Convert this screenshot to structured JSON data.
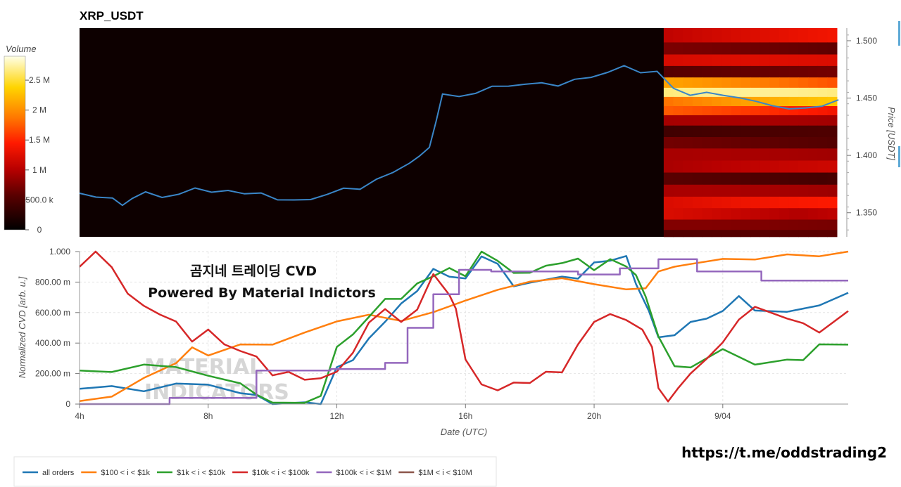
{
  "chart_data": [
    {
      "type": "heatmap",
      "title": "XRP_USDT",
      "ylabel": "Price [USDT]",
      "ylim": [
        1.329,
        1.511
      ],
      "yticks": [
        "1.500",
        "1.450",
        "1.400",
        "1.350"
      ],
      "colorbar": {
        "title": "Volume",
        "ticks": [
          "2.5 M",
          "2 M",
          "1.5 M",
          "1 M",
          "500.0 k",
          "0"
        ],
        "range": [
          0,
          2900000
        ]
      },
      "heatmap_start_hour": 21.7,
      "heatmap_levels": [
        {
          "price": 1.504,
          "volume": 1300000
        },
        {
          "price": 1.493,
          "volume": 650000
        },
        {
          "price": 1.483,
          "volume": 1050000
        },
        {
          "price": 1.473,
          "volume": 650000
        },
        {
          "price": 1.463,
          "volume": 1900000
        },
        {
          "price": 1.455,
          "volume": 2300000
        },
        {
          "price": 1.447,
          "volume": 2100000
        },
        {
          "price": 1.439,
          "volume": 1600000
        },
        {
          "price": 1.431,
          "volume": 800000
        },
        {
          "price": 1.421,
          "volume": 450000
        },
        {
          "price": 1.411,
          "volume": 650000
        },
        {
          "price": 1.401,
          "volume": 800000
        },
        {
          "price": 1.39,
          "volume": 1000000
        },
        {
          "price": 1.38,
          "volume": 550000
        },
        {
          "price": 1.369,
          "volume": 800000
        },
        {
          "price": 1.359,
          "volume": 1250000
        },
        {
          "price": 1.349,
          "volume": 1200000
        },
        {
          "price": 1.339,
          "volume": 650000
        },
        {
          "price": 1.331,
          "volume": 500000
        }
      ],
      "price_series": {
        "x": [
          4.0,
          4.5,
          5.0,
          5.3,
          5.6,
          6.0,
          6.5,
          7.0,
          7.5,
          8.0,
          8.5,
          9.0,
          9.5,
          10.0,
          10.5,
          11.0,
          11.5,
          12.0,
          12.5,
          13.0,
          13.5,
          14.0,
          14.3,
          14.6,
          14.8,
          15.0,
          15.5,
          16.0,
          16.5,
          17.0,
          17.5,
          18.0,
          18.5,
          19.0,
          19.5,
          20.0,
          20.5,
          21.0,
          21.5,
          22.0,
          22.5,
          23.0,
          23.5,
          24.0,
          24.5,
          25.0,
          25.5,
          26.0,
          26.5,
          27.0
        ],
        "y": [
          1.367,
          1.363,
          1.364,
          1.355,
          1.364,
          1.367,
          1.364,
          1.366,
          1.371,
          1.369,
          1.368,
          1.368,
          1.366,
          1.362,
          1.361,
          1.361,
          1.367,
          1.37,
          1.372,
          1.378,
          1.386,
          1.393,
          1.399,
          1.408,
          1.428,
          1.455,
          1.45,
          1.455,
          1.46,
          1.46,
          1.463,
          1.462,
          1.462,
          1.465,
          1.469,
          1.472,
          1.478,
          1.473,
          1.472,
          1.46,
          1.451,
          1.456,
          1.452,
          1.45,
          1.448,
          1.442,
          1.442,
          1.44,
          1.444,
          1.448
        ]
      }
    },
    {
      "type": "line",
      "xlabel": "Date (UTC)",
      "ylabel": "Normalized CVD [arb. u.]",
      "xlim": [
        4,
        27.9
      ],
      "ylim": [
        0,
        1
      ],
      "xticks": [
        "4h",
        "8h",
        "12h",
        "16h",
        "20h",
        "9/04"
      ],
      "yticks": [
        "1.000",
        "800.00 m",
        "600.00 m",
        "400.00 m",
        "200.00 m",
        "0"
      ],
      "series": [
        {
          "name": "all orders",
          "color": "#1f77b4",
          "x": [
            4,
            5,
            6,
            7,
            8,
            9,
            9.5,
            10,
            11,
            11.5,
            12,
            12.5,
            13,
            13.5,
            14,
            14.5,
            15,
            15.5,
            16,
            16.5,
            17,
            17.5,
            18,
            19,
            19.5,
            20,
            20.5,
            21,
            21.3,
            21.7,
            22,
            22.5,
            23,
            23.5,
            24,
            24.5,
            25,
            26,
            27,
            27.9
          ],
          "y": [
            0.1,
            0.12,
            0.08,
            0.14,
            0.12,
            0.08,
            0.05,
            0.0,
            0.0,
            0.01,
            0.23,
            0.3,
            0.42,
            0.55,
            0.65,
            0.75,
            0.88,
            0.84,
            0.82,
            0.97,
            0.92,
            0.77,
            0.8,
            0.83,
            0.83,
            0.92,
            0.95,
            0.96,
            0.8,
            0.6,
            0.45,
            0.44,
            0.55,
            0.55,
            0.62,
            0.7,
            0.62,
            0.6,
            0.65,
            0.73
          ]
        },
        {
          "name": "$100 < i < $1k",
          "color": "#ff7f0e",
          "x": [
            4,
            5,
            6,
            7,
            7.5,
            8,
            9,
            10,
            11,
            12,
            13,
            14,
            15,
            16,
            17,
            18,
            19,
            20,
            21,
            21.6,
            22,
            22.5,
            23,
            24,
            25,
            26,
            27,
            27.9
          ],
          "y": [
            0.02,
            0.06,
            0.16,
            0.28,
            0.36,
            0.33,
            0.38,
            0.4,
            0.46,
            0.55,
            0.58,
            0.55,
            0.6,
            0.68,
            0.75,
            0.8,
            0.83,
            0.78,
            0.76,
            0.75,
            0.88,
            0.89,
            0.93,
            0.94,
            0.96,
            0.97,
            0.98,
            1.0
          ]
        },
        {
          "name": "$1k < i < $10k",
          "color": "#2ca02c",
          "x": [
            4,
            5,
            6,
            7,
            8,
            9,
            9.5,
            10,
            11,
            11.5,
            12,
            12.5,
            13,
            13.5,
            14,
            14.5,
            15,
            15.5,
            16,
            16.5,
            17,
            17.5,
            18,
            18.5,
            19,
            19.5,
            20,
            20.5,
            21,
            21.3,
            21.6,
            22,
            22.5,
            23,
            24,
            25,
            26,
            26.5,
            27,
            27.9
          ],
          "y": [
            0.22,
            0.22,
            0.25,
            0.25,
            0.18,
            0.14,
            0.06,
            0.01,
            0.01,
            0.05,
            0.38,
            0.45,
            0.58,
            0.68,
            0.7,
            0.78,
            0.85,
            0.88,
            0.85,
            0.99,
            0.95,
            0.85,
            0.87,
            0.9,
            0.93,
            0.95,
            0.88,
            0.95,
            0.9,
            0.85,
            0.7,
            0.45,
            0.24,
            0.25,
            0.35,
            0.27,
            0.28,
            0.3,
            0.38,
            0.39
          ]
        },
        {
          "name": "$10k < i < $100k",
          "color": "#d62728",
          "x": [
            4,
            4.5,
            5,
            5.5,
            6,
            6.5,
            7,
            7.5,
            8,
            8.5,
            9,
            9.5,
            10,
            10.5,
            11,
            11.5,
            12,
            12.5,
            13,
            13.5,
            14,
            14.5,
            15,
            15.5,
            15.7,
            16,
            16.5,
            17,
            17.5,
            18,
            18.5,
            19,
            19.5,
            20,
            20.5,
            21,
            21.5,
            21.8,
            22,
            22.3,
            22.6,
            23,
            23.5,
            24,
            24.5,
            25,
            26,
            26.5,
            27,
            27.9
          ],
          "y": [
            0.9,
            1.0,
            0.9,
            0.72,
            0.65,
            0.58,
            0.55,
            0.4,
            0.5,
            0.38,
            0.36,
            0.3,
            0.2,
            0.2,
            0.17,
            0.16,
            0.22,
            0.33,
            0.54,
            0.62,
            0.54,
            0.62,
            0.85,
            0.72,
            0.62,
            0.3,
            0.12,
            0.1,
            0.13,
            0.15,
            0.2,
            0.22,
            0.38,
            0.55,
            0.58,
            0.56,
            0.48,
            0.38,
            0.1,
            0.02,
            0.1,
            0.2,
            0.3,
            0.4,
            0.56,
            0.63,
            0.57,
            0.52,
            0.48,
            0.61
          ]
        },
        {
          "name": "$100k < i < $1M",
          "color": "#9467bd",
          "x": [
            4,
            6.8,
            6.8,
            9.5,
            9.5,
            11.8,
            11.8,
            13.5,
            13.5,
            14.2,
            14.2,
            15,
            15,
            15.8,
            15.8,
            16.8,
            16.8,
            19.5,
            19.5,
            20.8,
            20.8,
            22,
            22,
            23.2,
            23.2,
            25.2,
            25.2,
            27.9
          ],
          "y": [
            0.0,
            0.0,
            0.04,
            0.04,
            0.22,
            0.22,
            0.23,
            0.23,
            0.27,
            0.27,
            0.5,
            0.5,
            0.72,
            0.72,
            0.88,
            0.88,
            0.87,
            0.87,
            0.85,
            0.85,
            0.89,
            0.89,
            0.95,
            0.95,
            0.87,
            0.87,
            0.81,
            0.81
          ]
        },
        {
          "name": "$1M < i < $10M",
          "color": "#8c564b",
          "x": [],
          "y": []
        }
      ]
    }
  ],
  "overlay": {
    "line1": "곰지네 트레이딩 CVD",
    "line2": "Powered By Material Indictors"
  },
  "watermark": {
    "line1": "MATERIAL",
    "line2": "INDICATORS"
  },
  "footer_link": "https://t.me/oddstrading2"
}
